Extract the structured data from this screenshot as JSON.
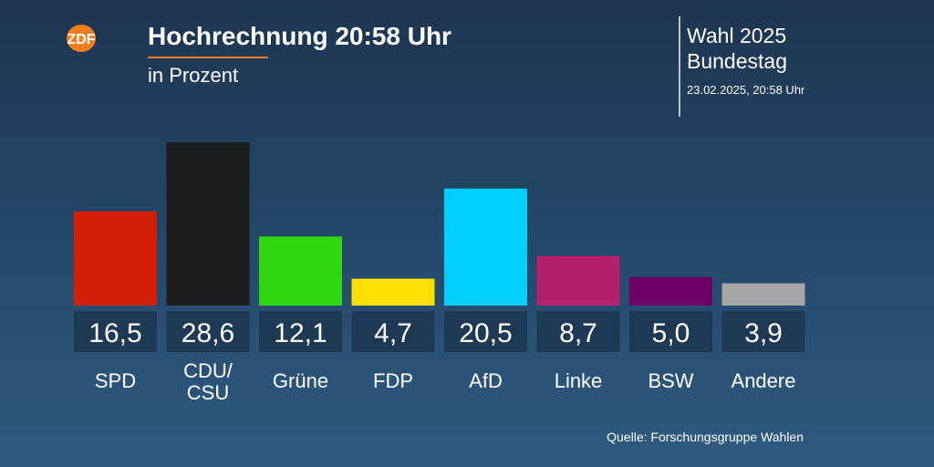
{
  "header": {
    "title": "Hochrechnung 20:58 Uhr",
    "subtitle": "in Prozent",
    "logo_text": "ZDF",
    "election": "Wahl 2025",
    "body": "Bundestag",
    "timestamp": "23.02.2025, 20:58 Uhr"
  },
  "source": "Quelle: Forschungsgruppe Wahlen",
  "colors": {
    "accent": "#f07d1e",
    "value_box": "#1e3954"
  },
  "chart_data": {
    "type": "bar",
    "categories": [
      "SPD",
      "CDU/\nCSU",
      "Grüne",
      "FDP",
      "AfD",
      "Linke",
      "BSW",
      "Andere"
    ],
    "values": [
      16.5,
      28.6,
      12.1,
      4.7,
      20.5,
      8.7,
      5.0,
      3.9
    ],
    "value_labels": [
      "16,5",
      "28,6",
      "12,1",
      "4,7",
      "20,5",
      "8,7",
      "5,0",
      "3,9"
    ],
    "colors": [
      "#d11f07",
      "#1c1c1c",
      "#2fd80d",
      "#ffe000",
      "#00cfff",
      "#b3206b",
      "#6d0066",
      "#a6a6a6"
    ],
    "title": "Hochrechnung 20:58 Uhr",
    "ylabel": "in Prozent",
    "ylim": [
      0,
      28.6
    ],
    "grid": false
  }
}
